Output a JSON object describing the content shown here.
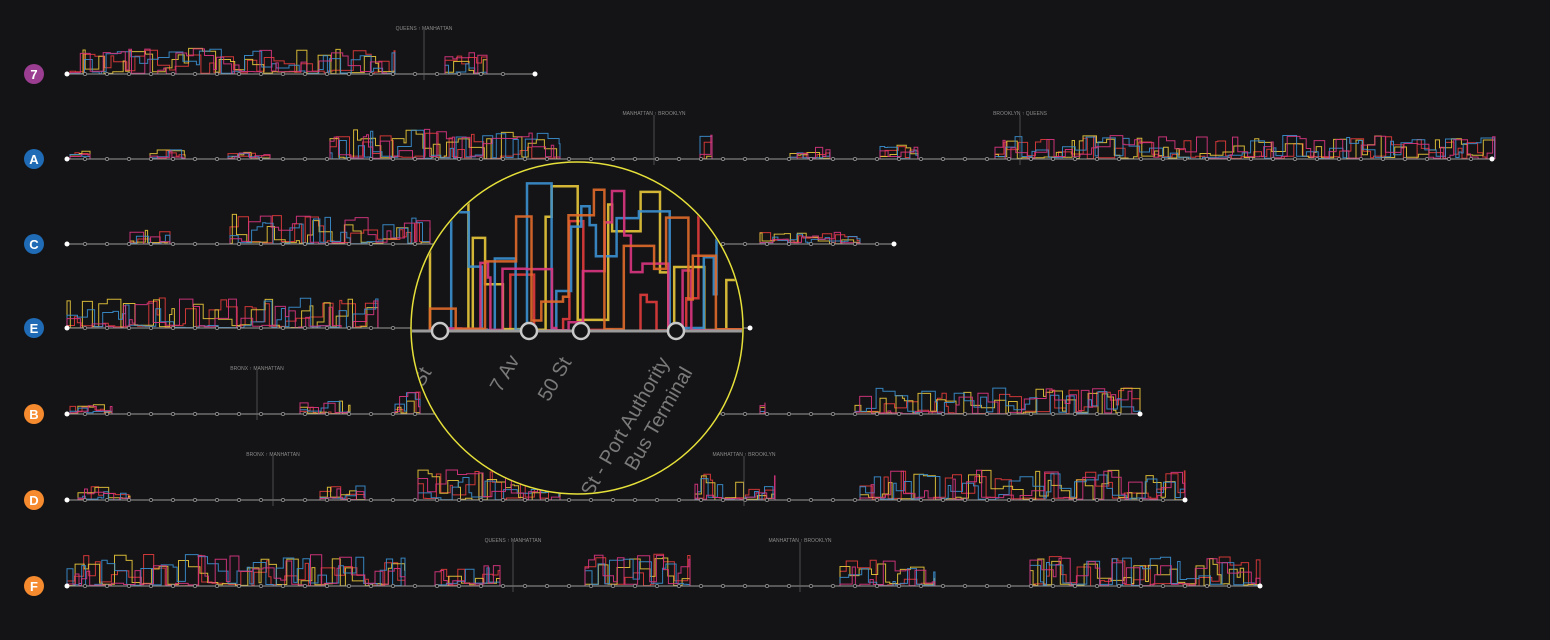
{
  "lines": [
    {
      "badge": "7",
      "color": "#9b3d91",
      "borders": [
        "QUEENS ↑ MANHATTAN"
      ]
    },
    {
      "badge": "A",
      "color": "#1f6bb5",
      "borders": [
        "MANHATTAN ↑ BROOKLYN",
        "BROOKLYN ↑ QUEENS"
      ]
    },
    {
      "badge": "C",
      "color": "#1f6bb5",
      "borders": []
    },
    {
      "badge": "E",
      "color": "#1f6bb5",
      "borders": []
    },
    {
      "badge": "B",
      "color": "#f58a2e",
      "borders": [
        "BRONX ↑ MANHATTAN"
      ]
    },
    {
      "badge": "D",
      "color": "#f58a2e",
      "borders": [
        "BRONX ↑ MANHATTAN",
        "MANHATTAN ↑ BROOKLYN"
      ]
    },
    {
      "badge": "F",
      "color": "#f58a2e",
      "borders": [
        "QUEENS ↑ MANHATTAN",
        "MANHATTAN ↑ BROOKLYN"
      ]
    }
  ],
  "magnifier": {
    "stations": [
      "St",
      "7 Av",
      "50 St",
      "St - Port Authority",
      "Bus Terminal"
    ]
  }
}
